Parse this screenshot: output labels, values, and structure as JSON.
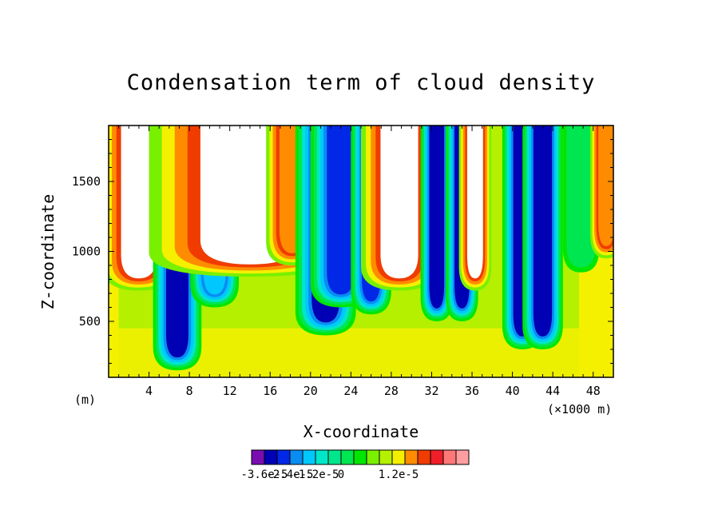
{
  "chart_data": {
    "type": "heatmap",
    "title": "Condensation term of cloud density",
    "xlabel": "X-coordinate",
    "ylabel": "Z-coordinate",
    "x_unit": "(×1000 m)",
    "y_unit": "(m)",
    "x_ticks": [
      "4",
      "8",
      "12",
      "16",
      "20",
      "24",
      "28",
      "32",
      "36",
      "40",
      "44",
      "48"
    ],
    "y_ticks": [
      "500",
      "1000",
      "1500"
    ],
    "xlim": [
      0,
      50
    ],
    "ylim": [
      100,
      1900
    ],
    "colorbar": {
      "labels": [
        "-3.6e-5",
        "-2.4e-5",
        "-1.2e-5",
        "0",
        "1.2e-5"
      ],
      "colors": [
        "#7a0db0",
        "#0000b4",
        "#0028e6",
        "#0a8cf0",
        "#00c8ff",
        "#00e6c8",
        "#00e68c",
        "#00e650",
        "#00e600",
        "#78f000",
        "#b4f000",
        "#f5f000",
        "#ff8c00",
        "#f03c00",
        "#f01e28",
        "#ff7878",
        "#ff9ea0"
      ]
    },
    "field": {
      "background": "#b4f000",
      "color_levels": [
        "#ffffff",
        "#7a0db0",
        "#0000b4",
        "#0028e6",
        "#0a8cf0",
        "#00c8ff",
        "#00e6c8",
        "#00e68c",
        "#00e650",
        "#00e600",
        "#78f000",
        "#b4f000",
        "#f5f000",
        "#ff8c00",
        "#f03c00",
        "#ff7878"
      ],
      "plumes": [
        {
          "x": 3.0,
          "w": 1.8,
          "z_base": 720,
          "core": "#ffffff"
        },
        {
          "x": 6.8,
          "w": 1.2,
          "z_base": 150,
          "core": "#0000b4"
        },
        {
          "x": 10.5,
          "w": 1.2,
          "z_base": 600,
          "core": "#00c8ff"
        },
        {
          "x": 14.0,
          "w": 5.0,
          "z_base": 820,
          "core": "#ffffff"
        },
        {
          "x": 18.2,
          "w": 1.3,
          "z_base": 900,
          "core": "#ff8c00"
        },
        {
          "x": 21.5,
          "w": 1.5,
          "z_base": 400,
          "core": "#0000b4"
        },
        {
          "x": 23.0,
          "w": 1.5,
          "z_base": 600,
          "core": "#0028e6"
        },
        {
          "x": 26.0,
          "w": 1.0,
          "z_base": 550,
          "core": "#0028e6"
        },
        {
          "x": 28.8,
          "w": 1.9,
          "z_base": 720,
          "core": "#ffffff"
        },
        {
          "x": 32.5,
          "w": 0.8,
          "z_base": 500,
          "core": "#0000b4"
        },
        {
          "x": 35.0,
          "w": 0.8,
          "z_base": 500,
          "core": "#0000b4"
        },
        {
          "x": 36.3,
          "w": 0.8,
          "z_base": 720,
          "core": "#ffffff"
        },
        {
          "x": 41.0,
          "w": 1.0,
          "z_base": 300,
          "core": "#0000b4"
        },
        {
          "x": 43.0,
          "w": 1.0,
          "z_base": 300,
          "core": "#0000b4"
        },
        {
          "x": 46.8,
          "w": 0.9,
          "z_base": 850,
          "core": "#00e650"
        },
        {
          "x": 49.3,
          "w": 0.8,
          "z_base": 950,
          "core": "#ff8c00"
        }
      ]
    }
  }
}
